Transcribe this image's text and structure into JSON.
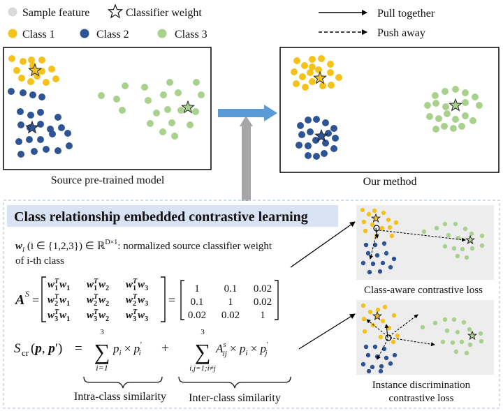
{
  "legend": {
    "sample_feature": "Sample feature",
    "classifier_weight": "Classifier weight",
    "class1": "Class 1",
    "class2": "Class 2",
    "class3": "Class 3",
    "pull_together": "Pull together",
    "push_away": "Push away"
  },
  "panels": {
    "source_caption": "Source pre-trained model",
    "ours_caption": "Our method"
  },
  "method": {
    "title": "Class relationship embedded contrastive learning",
    "weight_desc_line1": "w",
    "weight_desc_sub": "i",
    "weight_desc_rest": " (i ∈ {1,2,3}) ∈ ℝ",
    "weight_desc_sup": "D×1",
    "weight_desc_tail": ": normalized source classifier weight",
    "weight_desc_line2": "of i-th class",
    "matrix_values": [
      [
        "1",
        "0.1",
        "0.02"
      ],
      [
        "0.1",
        "1",
        "0.02"
      ],
      [
        "0.02",
        "0.02",
        "1"
      ]
    ],
    "intra_label": "Intra-class similarity",
    "inter_label": "Inter-class similarity",
    "sum_top": "3",
    "sum1_bottom": "i=1",
    "sum2_bottom": "i,j=1;i≠j"
  },
  "losses": {
    "class_aware": "Class-aware contrastive loss",
    "instance_line1": "Instance discrimination",
    "instance_line2": "contrastive loss"
  },
  "colors": {
    "class1": "#f5c21b",
    "class2": "#2e5496",
    "class3": "#a9d18e",
    "sample": "#d9d9d9",
    "arrow_blue": "#5b9bd5",
    "arrow_gray": "#a6a6a6",
    "title_bg": "#dae3f3",
    "inset_bg": "#ededed"
  }
}
